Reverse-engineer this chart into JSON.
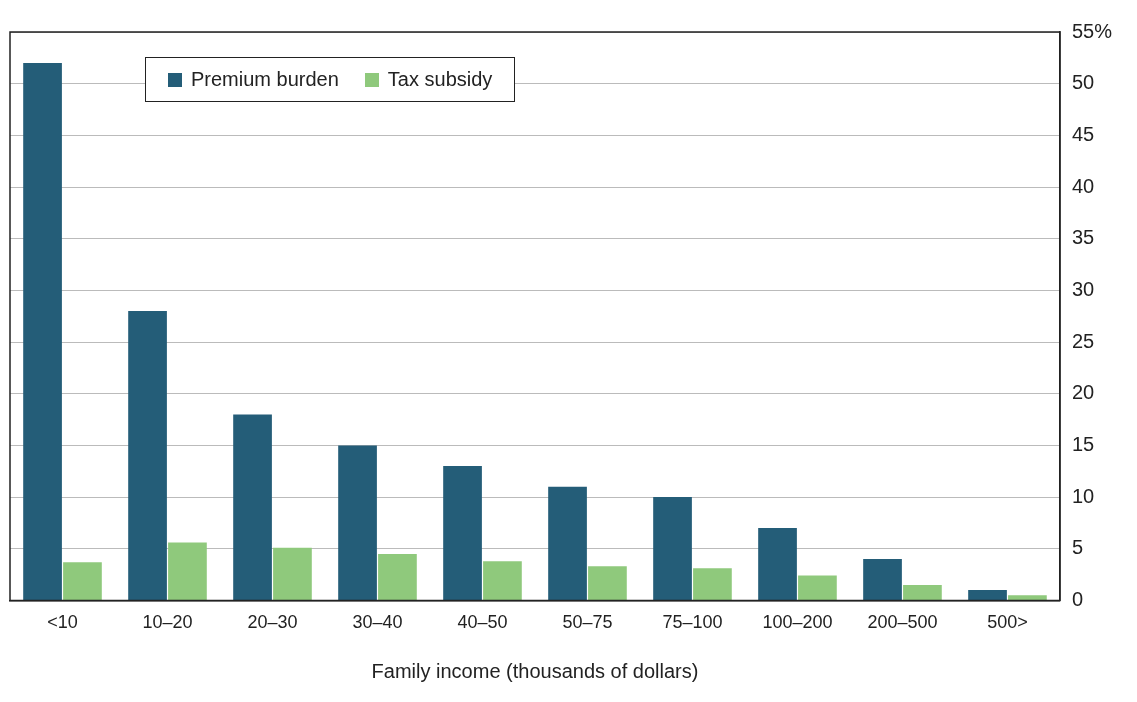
{
  "chart_data": {
    "type": "bar",
    "xlabel": "Family income (thousands of dollars)",
    "categories": [
      "<10",
      "10–20",
      "20–30",
      "30–40",
      "40–50",
      "50–75",
      "75–100",
      "100–200",
      "200–500",
      "500>"
    ],
    "series": [
      {
        "name": "Premium burden",
        "color": "#245d78",
        "values": [
          52,
          28,
          18,
          15,
          13,
          11,
          10,
          7,
          4,
          1
        ]
      },
      {
        "name": "Tax subsidy",
        "color": "#8fc97c",
        "values": [
          3.7,
          5.6,
          5.1,
          4.5,
          3.8,
          3.3,
          3.1,
          2.4,
          1.5,
          0.5
        ]
      }
    ],
    "ylim": [
      0,
      55
    ],
    "yticks": [
      0,
      5,
      10,
      15,
      20,
      25,
      30,
      35,
      40,
      45,
      50,
      {
        "value": 55,
        "label": "55%"
      }
    ],
    "grid": "y",
    "legend": "top left"
  }
}
